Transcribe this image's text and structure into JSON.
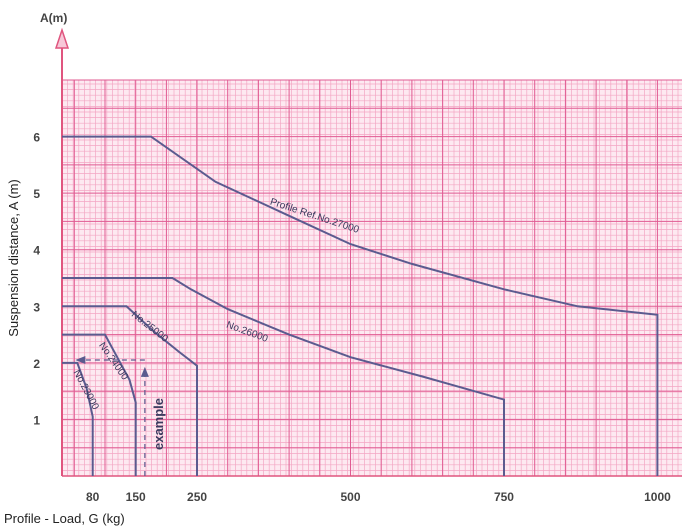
{
  "chart_data": {
    "type": "line",
    "title": "",
    "xlabel": "Profile - Load, G (kg)",
    "ylabel": "Suspension distance, A (m)",
    "y_axis_unit_label": "A(m)",
    "x_ticks": [
      80,
      150,
      250,
      500,
      750,
      1000
    ],
    "y_ticks": [
      1,
      2,
      3,
      4,
      5,
      6
    ],
    "xlim": [
      30,
      1040
    ],
    "ylim": [
      0,
      7
    ],
    "grid": true,
    "colors": {
      "grid_fine": "#f3a6c4",
      "grid_major": "#e05b92",
      "curve": "#5b5b8f",
      "axis": "#e0557f"
    },
    "series": [
      {
        "name": "Profile Ref.No.27000",
        "points": [
          [
            30,
            6
          ],
          [
            175,
            6
          ],
          [
            280,
            5.2
          ],
          [
            400,
            4.6
          ],
          [
            500,
            4.1
          ],
          [
            600,
            3.75
          ],
          [
            750,
            3.3
          ],
          [
            870,
            3.0
          ],
          [
            1000,
            2.85
          ],
          [
            1000,
            0
          ]
        ]
      },
      {
        "name": "No.26000",
        "points": [
          [
            30,
            3.5
          ],
          [
            210,
            3.5
          ],
          [
            240,
            3.3
          ],
          [
            300,
            2.95
          ],
          [
            400,
            2.5
          ],
          [
            500,
            2.1
          ],
          [
            620,
            1.75
          ],
          [
            750,
            1.35
          ],
          [
            750,
            0
          ]
        ]
      },
      {
        "name": "No.25000",
        "points": [
          [
            30,
            3.0
          ],
          [
            135,
            3.0
          ],
          [
            180,
            2.55
          ],
          [
            220,
            2.2
          ],
          [
            250,
            1.95
          ],
          [
            250,
            0
          ]
        ]
      },
      {
        "name": "No.24000",
        "points": [
          [
            30,
            2.5
          ],
          [
            100,
            2.5
          ],
          [
            120,
            2.1
          ],
          [
            140,
            1.7
          ],
          [
            150,
            1.3
          ],
          [
            150,
            0
          ]
        ]
      },
      {
        "name": "No.23000",
        "points": [
          [
            30,
            2.0
          ],
          [
            55,
            2.0
          ],
          [
            70,
            1.55
          ],
          [
            80,
            1.05
          ],
          [
            80,
            0
          ]
        ]
      }
    ],
    "annotations": [
      {
        "text": "example",
        "x": 195,
        "y": 2.0
      }
    ]
  }
}
